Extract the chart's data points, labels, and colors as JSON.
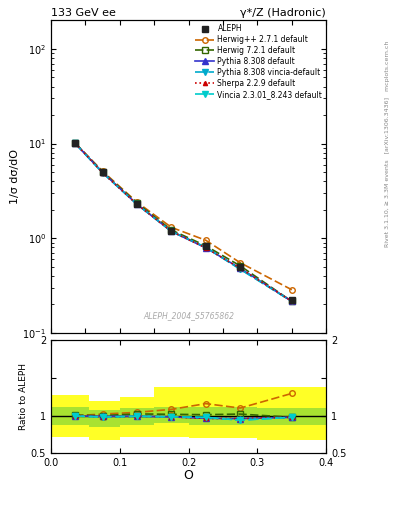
{
  "title_left": "133 GeV ee",
  "title_right": "γ*/Z (Hadronic)",
  "ylabel_main": "1/σ dσ/dO",
  "ylabel_ratio": "Ratio to ALEPH",
  "xlabel": "O",
  "rivet_label": "Rivet 3.1.10, ≥ 3.3M events",
  "arxiv_label": "[arXiv:1306.3436]",
  "mcplots_label": "mcplots.cern.ch",
  "ref_label": "ALEPH_2004_S5765862",
  "x_data": [
    0.035,
    0.075,
    0.125,
    0.175,
    0.225,
    0.275,
    0.35
  ],
  "aleph_y": [
    10.1,
    5.0,
    2.3,
    1.2,
    0.82,
    0.5,
    0.22
  ],
  "herwig_pp_y": [
    10.1,
    5.1,
    2.4,
    1.3,
    0.95,
    0.55,
    0.285
  ],
  "herwig721_y": [
    10.15,
    5.0,
    2.35,
    1.22,
    0.83,
    0.51,
    0.215
  ],
  "pythia308_y": [
    10.05,
    4.95,
    2.28,
    1.18,
    0.79,
    0.48,
    0.215
  ],
  "pythia308v_y": [
    10.05,
    4.9,
    2.28,
    1.18,
    0.8,
    0.47,
    0.215
  ],
  "sherpa_y": [
    10.1,
    4.9,
    2.28,
    1.18,
    0.79,
    0.48,
    0.215
  ],
  "vincia_y": [
    10.05,
    4.9,
    2.28,
    1.18,
    0.8,
    0.47,
    0.215
  ],
  "ratio_herwig_pp": [
    1.0,
    1.02,
    1.043,
    1.083,
    1.159,
    1.1,
    1.295
  ],
  "ratio_herwig721": [
    1.005,
    1.0,
    1.022,
    1.017,
    1.012,
    1.02,
    0.977
  ],
  "ratio_pythia308": [
    0.995,
    0.99,
    0.991,
    0.983,
    0.963,
    0.96,
    0.977
  ],
  "ratio_pythia308v": [
    0.995,
    0.98,
    0.991,
    0.983,
    0.976,
    0.94,
    0.977
  ],
  "ratio_sherpa": [
    1.0,
    0.98,
    0.991,
    0.983,
    0.963,
    0.96,
    0.977
  ],
  "ratio_vincia": [
    0.995,
    0.98,
    0.991,
    0.983,
    0.976,
    0.94,
    0.977
  ],
  "band_x": [
    0.0,
    0.055,
    0.055,
    0.1,
    0.1,
    0.15,
    0.15,
    0.2,
    0.2,
    0.3,
    0.3,
    0.4
  ],
  "band_yellow_lo": [
    0.72,
    0.72,
    0.68,
    0.68,
    0.72,
    0.72,
    0.72,
    0.72,
    0.7,
    0.7,
    0.68,
    0.68
  ],
  "band_yellow_hi": [
    1.28,
    1.28,
    1.2,
    1.2,
    1.25,
    1.25,
    1.38,
    1.38,
    1.38,
    1.38,
    1.38,
    1.38
  ],
  "band_green_lo": [
    0.88,
    0.88,
    0.85,
    0.85,
    0.88,
    0.88,
    0.9,
    0.9,
    0.88,
    0.88,
    0.88,
    0.88
  ],
  "band_green_hi": [
    1.12,
    1.12,
    1.08,
    1.08,
    1.1,
    1.1,
    1.12,
    1.12,
    1.12,
    1.12,
    1.1,
    1.1
  ],
  "xlim": [
    0.0,
    0.4
  ],
  "ylim_main_log": [
    0.1,
    200
  ],
  "ylim_ratio": [
    0.5,
    2.0
  ],
  "colors": {
    "aleph": "#222222",
    "herwig_pp": "#cc6600",
    "herwig721": "#336600",
    "pythia308": "#3333cc",
    "pythia308v": "#00aacc",
    "sherpa": "#cc0000",
    "vincia": "#00cccc"
  },
  "background_color": "#ffffff"
}
